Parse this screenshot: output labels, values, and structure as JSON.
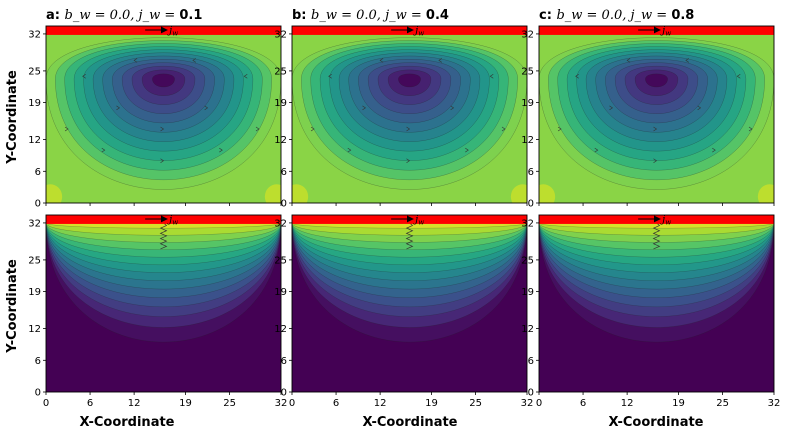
{
  "figure": {
    "type": "contour-streamline-grid",
    "colormap": [
      "#440154",
      "#472d7b",
      "#3b528b",
      "#2c728e",
      "#21918c",
      "#28ae80",
      "#5ec962",
      "#addc30",
      "#fde725"
    ],
    "wall_color": "#ff0000",
    "ylabel": "Y-Coordinate",
    "xlabel": "X-Coordinate",
    "lid_label": "j_w"
  },
  "chart_data": {
    "type": "heatmap",
    "description_free": true,
    "x_ticks": [
      "0",
      "6",
      "12",
      "19",
      "25",
      "32"
    ],
    "y_ticks": [
      "0",
      "6",
      "12",
      "19",
      "25",
      "32"
    ],
    "x_range": [
      0,
      32
    ],
    "y_range": [
      0,
      33.5
    ],
    "xlabel": "X-Coordinate",
    "ylabel": "Y-Coordinate",
    "columns": [
      {
        "letter": "a:",
        "params": "b_w = 0.0, j_w = ",
        "jw_value": "0.1",
        "b_w": 0.0,
        "j_w": 0.1
      },
      {
        "letter": "b:",
        "params": "b_w = 0.0, j_w = ",
        "jw_value": "0.4",
        "b_w": 0.0,
        "j_w": 0.4
      },
      {
        "letter": "c:",
        "params": "b_w = 0.0, j_w = ",
        "jw_value": "0.8",
        "b_w": 0.0,
        "j_w": 0.8
      }
    ],
    "rows": [
      {
        "field": "vortex",
        "vortex_center": [
          16,
          23.5
        ],
        "levels": 12
      },
      {
        "field": "lid-driven",
        "levels": 14
      }
    ]
  }
}
